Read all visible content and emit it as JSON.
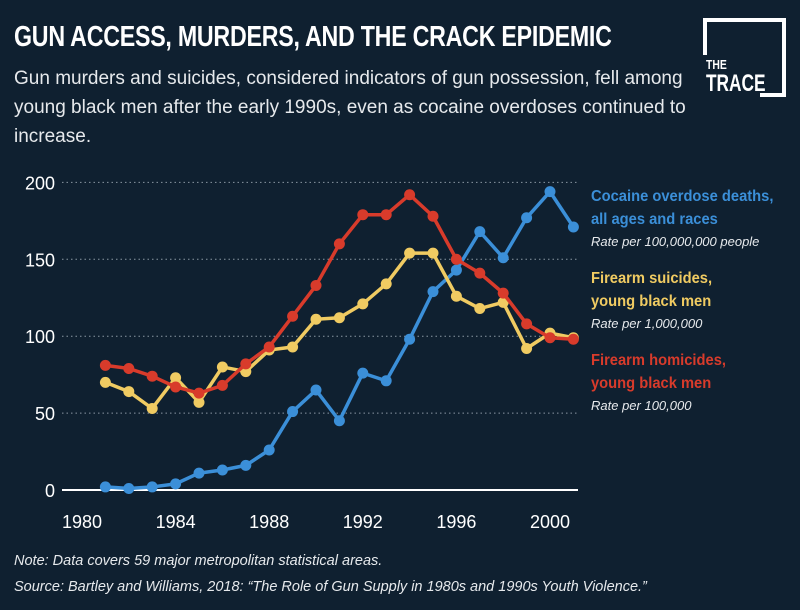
{
  "header": {
    "title": "GUN ACCESS, MURDERS, AND THE CRACK EPIDEMIC",
    "subtitle": "Gun murders and suicides, considered indicators of gun possession, fell among young black men after the early 1990s, even as cocaine overdoses continued to increase."
  },
  "logo": {
    "line1": "THE",
    "line2": "TRACE"
  },
  "chart_data": {
    "type": "line",
    "title": "GUN ACCESS, MURDERS, AND THE CRACK EPIDEMIC",
    "xlabel": "",
    "ylabel": "",
    "xlim": [
      1980,
      2001
    ],
    "ylim": [
      0,
      200
    ],
    "x_ticks": [
      1980,
      1984,
      1988,
      1992,
      1996,
      2000
    ],
    "y_ticks": [
      0,
      50,
      100,
      150,
      200
    ],
    "grid": "horizontal dotted",
    "legend_placement": "right",
    "x": [
      1981,
      1982,
      1983,
      1984,
      1985,
      1986,
      1987,
      1988,
      1989,
      1990,
      1991,
      1992,
      1993,
      1994,
      1995,
      1996,
      1997,
      1998,
      1999,
      2000,
      2001
    ],
    "series": [
      {
        "name": "Cocaine overdose deaths, all ages and races",
        "rate": "Rate per 100,000,000 people",
        "color": "#3b8fd8",
        "values": [
          2,
          1,
          2,
          4,
          11,
          13,
          16,
          26,
          51,
          65,
          45,
          76,
          71,
          98,
          129,
          143,
          168,
          151,
          177,
          194,
          171
        ]
      },
      {
        "name": "Firearm suicides, young black men",
        "rate": "Rate per 1,000,000",
        "color": "#f0cb62",
        "values": [
          70,
          64,
          53,
          73,
          57,
          80,
          77,
          91,
          93,
          111,
          112,
          121,
          134,
          154,
          154,
          126,
          118,
          122,
          92,
          102,
          99
        ]
      },
      {
        "name": "Firearm homicides, young black men",
        "rate": "Rate per 100,000",
        "color": "#d83b2b",
        "values": [
          81,
          79,
          74,
          67,
          63,
          68,
          82,
          93,
          113,
          133,
          160,
          179,
          179,
          192,
          178,
          150,
          141,
          128,
          108,
          99,
          98
        ]
      }
    ]
  },
  "legend": [
    {
      "line1": "Cocaine overdose deaths,",
      "line2": "all ages and races",
      "rate": "Rate per 100,000,000 people"
    },
    {
      "line1": "Firearm suicides,",
      "line2": "young black men",
      "rate": "Rate per 1,000,000"
    },
    {
      "line1": "Firearm homicides,",
      "line2": "young black men",
      "rate": "Rate per 100,000"
    }
  ],
  "notes": {
    "note": "Note: Data covers 59 major metropolitan statistical areas.",
    "source": "Source: Bartley and Williams, 2018: “The Role of Gun Supply in 1980s and 1990s Youth Violence.”"
  }
}
